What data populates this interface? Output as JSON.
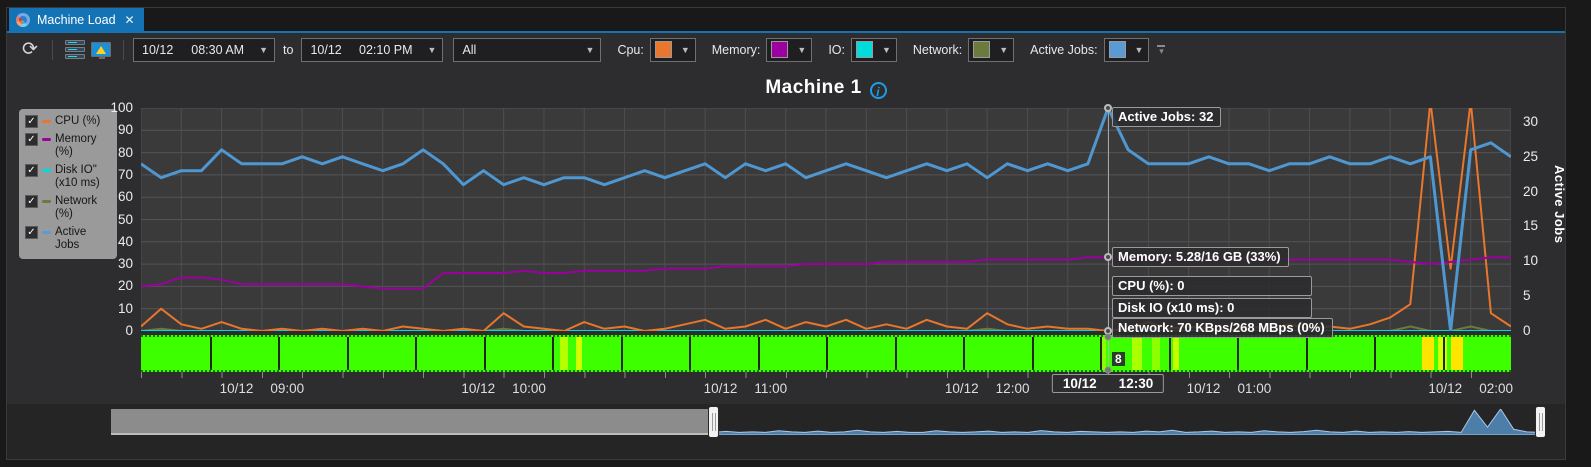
{
  "tab": {
    "title": "Machine Load",
    "close_glyph": "✕"
  },
  "toolbar": {
    "refresh_glyph": "⟳",
    "from_date": "10/12",
    "from_time": "08:30 AM",
    "to_label": "to",
    "to_date": "10/12",
    "to_time": "02:10 PM",
    "filter_value": "All",
    "series_pickers": [
      {
        "label": "Cpu:",
        "color": "#e8762c"
      },
      {
        "label": "Memory:",
        "color": "#9c00a0"
      },
      {
        "label": "IO:",
        "color": "#00dcdc"
      },
      {
        "label": "Network:",
        "color": "#6b7a3d"
      },
      {
        "label": "Active Jobs:",
        "color": "#5b9bd5"
      }
    ]
  },
  "chart": {
    "title": "Machine 1",
    "info_glyph": "i",
    "right_axis_title": "Active Jobs",
    "legend": [
      {
        "label": "CPU (%)",
        "color": "#e8762c"
      },
      {
        "label": "Memory (%)",
        "color": "#9c00a0"
      },
      {
        "label": "Disk IO\"",
        "label2": "(x10 ms)",
        "color": "#00dcdc"
      },
      {
        "label": "Network (%)",
        "color": "#6b7a3d"
      },
      {
        "label": "Active Jobs",
        "color": "#5b9bd5"
      }
    ]
  },
  "chart_data": {
    "type": "line",
    "x_start_time": "08:30",
    "x_minutes_step": 5,
    "x_total_minutes": 340,
    "left_ylim": [
      0,
      100
    ],
    "right_ylim": [
      0,
      32
    ],
    "left_ticks": [
      100,
      90,
      80,
      70,
      60,
      50,
      40,
      30,
      20,
      10,
      0
    ],
    "right_ticks": [
      30,
      25,
      20,
      15,
      10,
      5,
      0
    ],
    "grid_minor_minutes": 10,
    "x_labels": [
      {
        "t": 30,
        "date": "10/12",
        "time": "09:00"
      },
      {
        "t": 90,
        "date": "10/12",
        "time": "10:00"
      },
      {
        "t": 150,
        "date": "10/12",
        "time": "11:00"
      },
      {
        "t": 210,
        "date": "10/12",
        "time": "12:00"
      },
      {
        "t": 270,
        "date": "10/12",
        "time": "01:00"
      },
      {
        "t": 330,
        "date": "10/12",
        "time": "02:00"
      }
    ],
    "series": [
      {
        "name": "Network (%)",
        "axis": "left",
        "color": "#6b7a3d",
        "width": 2,
        "values": [
          0,
          1,
          0,
          0,
          0,
          0,
          0,
          0,
          0,
          0,
          0,
          0,
          0,
          0,
          0,
          0,
          0,
          0,
          1,
          0,
          0,
          0,
          0,
          0,
          0,
          0,
          0,
          0,
          0,
          0,
          0,
          0,
          0,
          0,
          0,
          0,
          0,
          0,
          0,
          0,
          0,
          0,
          1,
          0,
          0,
          0,
          0,
          0,
          0,
          0,
          0,
          0,
          0,
          0,
          0,
          0,
          0,
          0,
          0,
          0,
          0,
          0,
          0,
          2,
          0,
          0,
          2,
          0,
          0
        ]
      },
      {
        "name": "Disk IO (x10 ms)",
        "axis": "left",
        "color": "#00dcdc",
        "width": 2,
        "values": [
          0,
          0,
          0,
          0,
          0,
          0,
          0,
          0,
          0,
          0,
          0,
          0,
          0,
          0,
          0,
          0,
          0,
          0,
          0,
          0,
          0,
          0,
          0,
          0,
          0,
          0,
          0,
          0,
          0,
          0,
          0,
          0,
          0,
          0,
          0,
          0,
          0,
          0,
          0,
          0,
          0,
          0,
          0,
          0,
          0,
          0,
          0,
          0,
          0,
          0,
          0,
          0,
          0,
          0,
          0,
          0,
          0,
          0,
          0,
          0,
          0,
          0,
          0,
          0,
          0,
          0,
          0,
          0,
          0
        ]
      },
      {
        "name": "CPU (%)",
        "axis": "left",
        "color": "#e8762c",
        "width": 2,
        "values": [
          2,
          10,
          3,
          1,
          4,
          1,
          0,
          1,
          0,
          1,
          0,
          1,
          0,
          2,
          1,
          0,
          1,
          0,
          8,
          2,
          1,
          0,
          4,
          1,
          2,
          0,
          1,
          3,
          5,
          1,
          2,
          5,
          1,
          4,
          2,
          5,
          1,
          3,
          1,
          5,
          2,
          1,
          8,
          3,
          1,
          2,
          1,
          1,
          0,
          1,
          4,
          1,
          2,
          1,
          0,
          2,
          1,
          3,
          1,
          2,
          1,
          3,
          6,
          12,
          103,
          28,
          103,
          8,
          2
        ]
      },
      {
        "name": "Memory (%)",
        "axis": "left",
        "color": "#9c00a0",
        "width": 2,
        "values": [
          20,
          21,
          24,
          24,
          23,
          21,
          21,
          21,
          21,
          21,
          21,
          20,
          19,
          19,
          19,
          26,
          26,
          26,
          26,
          27,
          26,
          26,
          27,
          27,
          27,
          27,
          28,
          28,
          28,
          29,
          29,
          29,
          29,
          30,
          30,
          30,
          30,
          31,
          31,
          31,
          31,
          31,
          32,
          32,
          32,
          32,
          32,
          33,
          33,
          33,
          33,
          32,
          32,
          32,
          32,
          33,
          33,
          32,
          32,
          32,
          32,
          32,
          32,
          31,
          30,
          31,
          32,
          33,
          33
        ]
      },
      {
        "name": "Active Jobs",
        "axis": "right",
        "color": "#4f97d1",
        "width": 3,
        "values": [
          24,
          22,
          23,
          23,
          26,
          24,
          24,
          24,
          25,
          24,
          25,
          24,
          23,
          24,
          26,
          24,
          21,
          23,
          21,
          22,
          21,
          22,
          22,
          21,
          22,
          23,
          22,
          23,
          24,
          22,
          24,
          23,
          24,
          22,
          23,
          24,
          23,
          22,
          23,
          24,
          23,
          24,
          22,
          24,
          23,
          24,
          23,
          24,
          32,
          26,
          24,
          24,
          24,
          25,
          24,
          24,
          23,
          24,
          24,
          25,
          24,
          24,
          25,
          24,
          25,
          0,
          26,
          27,
          25
        ]
      }
    ],
    "load_strip": {
      "base_color": "#3dff00",
      "separator_count": 20,
      "bands": [
        {
          "t": 104,
          "d": 2,
          "color": "#b4ff00"
        },
        {
          "t": 108,
          "d": 1.5,
          "color": "#d2ff00"
        },
        {
          "t": 238,
          "d": 1.5,
          "color": "#8dff00"
        },
        {
          "t": 246,
          "d": 2.5,
          "color": "#aaff00"
        },
        {
          "t": 251,
          "d": 2,
          "color": "#8dff00"
        },
        {
          "t": 256,
          "d": 1.5,
          "color": "#c6ff00"
        },
        {
          "t": 318,
          "d": 3,
          "color": "#ffe400"
        },
        {
          "t": 322,
          "d": 2,
          "color": "#d8ff00"
        },
        {
          "t": 325,
          "d": 3,
          "color": "#ffe400"
        }
      ]
    },
    "overview": {
      "color": "#5b9bd5",
      "values": [
        0.1,
        0.14,
        0.1,
        0.12,
        0.1,
        0.16,
        0.12,
        0.1,
        0.15,
        0.1,
        0.12,
        0.18,
        0.12,
        0.1,
        0.14,
        0.1,
        0.1,
        0.16,
        0.12,
        0.1,
        0.12,
        0.15,
        0.1,
        0.12,
        0.1,
        0.17,
        0.12,
        0.1,
        0.14,
        0.12,
        0.1,
        0.12,
        0.1,
        0.15,
        0.12,
        0.18,
        0.1,
        0.12,
        0.15,
        0.1,
        0.12,
        0.1,
        0.16,
        0.12,
        0.1,
        0.13,
        0.18,
        0.12,
        0.1,
        0.15,
        0.1,
        0.12,
        0.1,
        0.13,
        0.1,
        0.12,
        0.14,
        0.1,
        0.95,
        0.3,
        1.0,
        0.22,
        0.12,
        0.1
      ]
    }
  },
  "crosshair": {
    "t": 240,
    "label_date": "10/12",
    "label_time": "12:30",
    "strip_value": "8",
    "tooltips": {
      "active_jobs": "Active Jobs: 32",
      "memory": "Memory: 5.28/16 GB (33%)",
      "cpu": "CPU (%): 0",
      "disk": "Disk IO (x10 ms): 0",
      "network": "Network: 70 KBps/268 MBps (0%)"
    }
  }
}
